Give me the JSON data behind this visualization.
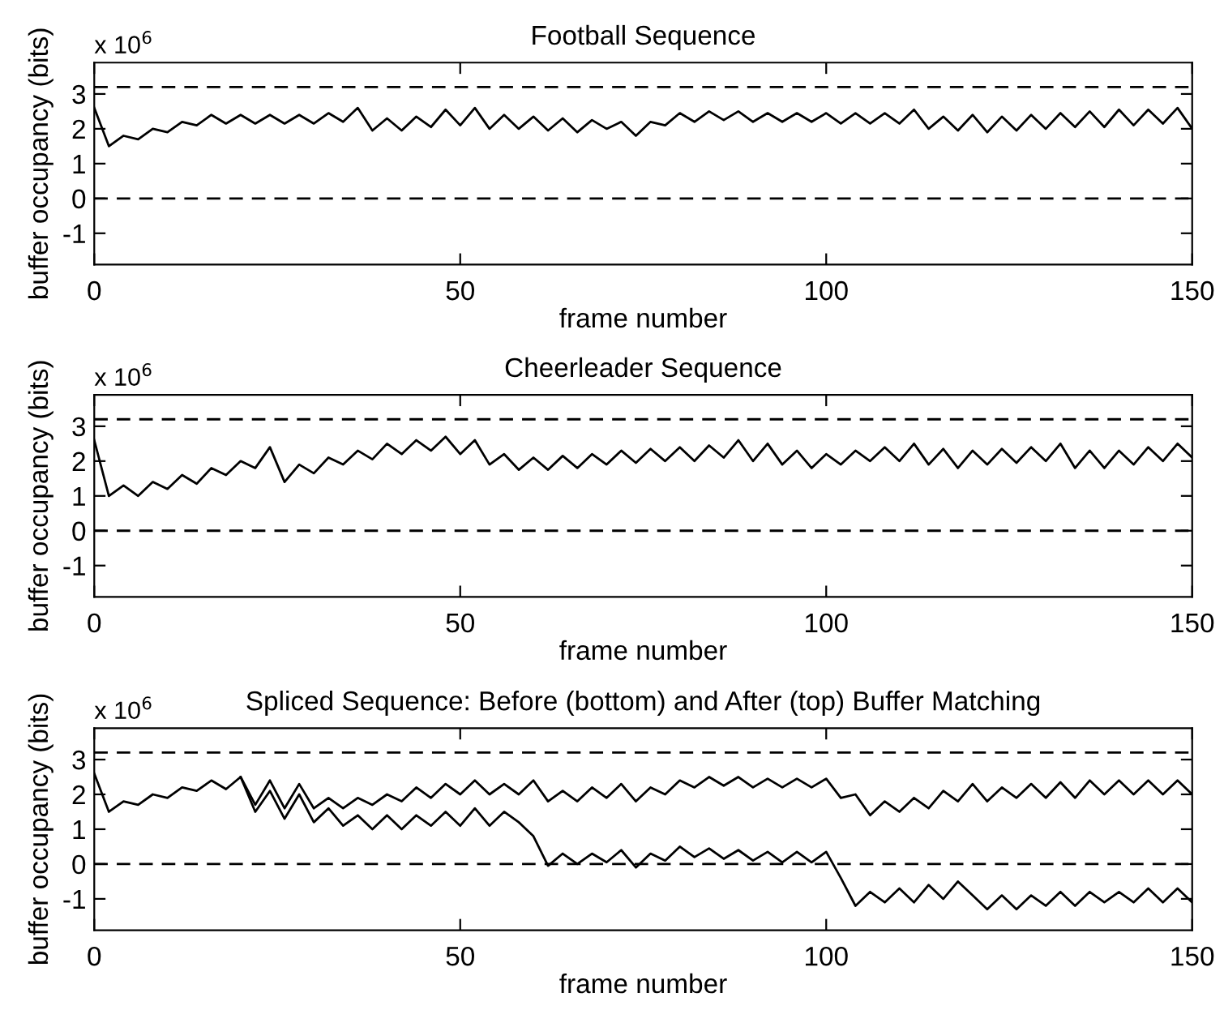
{
  "chart_data": [
    {
      "type": "line",
      "title": "Football Sequence",
      "xlabel": "frame number",
      "ylabel": "buffer occupancy (bits)",
      "annotations": [
        "x 10$^{6}$"
      ],
      "xlim": [
        0,
        150
      ],
      "xticks": [
        0,
        50,
        100,
        150
      ],
      "ylim": [
        -1.9,
        3.9
      ],
      "yticks": [
        -1,
        0,
        1,
        2,
        3
      ],
      "grid": false,
      "legend": false,
      "line_style": "solid",
      "marker": "none",
      "ref_lines": [
        {
          "axis": "y",
          "value": 3.2,
          "line_style": "dashed",
          "color": "#000000"
        },
        {
          "axis": "y",
          "value": 0,
          "line_style": "dashed",
          "color": "#000000"
        }
      ],
      "x": [
        0,
        2,
        4,
        6,
        8,
        10,
        12,
        14,
        16,
        18,
        20,
        22,
        24,
        26,
        28,
        30,
        32,
        34,
        36,
        38,
        40,
        42,
        44,
        46,
        48,
        50,
        52,
        54,
        56,
        58,
        60,
        62,
        64,
        66,
        68,
        70,
        72,
        74,
        76,
        78,
        80,
        82,
        84,
        86,
        88,
        90,
        92,
        94,
        96,
        98,
        100,
        102,
        104,
        106,
        108,
        110,
        112,
        114,
        116,
        118,
        120,
        122,
        124,
        126,
        128,
        130,
        132,
        134,
        136,
        138,
        140,
        142,
        144,
        146,
        148,
        150
      ],
      "series": [
        {
          "color": "#000000",
          "values": [
            2.6,
            1.5,
            1.8,
            1.7,
            2.0,
            1.9,
            2.2,
            2.1,
            2.4,
            2.15,
            2.4,
            2.15,
            2.4,
            2.15,
            2.4,
            2.15,
            2.45,
            2.2,
            2.6,
            1.95,
            2.3,
            1.95,
            2.35,
            2.05,
            2.55,
            2.1,
            2.6,
            2.0,
            2.4,
            2.0,
            2.35,
            1.95,
            2.3,
            1.9,
            2.25,
            2.0,
            2.2,
            1.8,
            2.2,
            2.1,
            2.45,
            2.2,
            2.5,
            2.25,
            2.5,
            2.2,
            2.45,
            2.2,
            2.45,
            2.2,
            2.45,
            2.15,
            2.45,
            2.15,
            2.45,
            2.15,
            2.55,
            2.0,
            2.35,
            1.95,
            2.4,
            1.9,
            2.35,
            1.95,
            2.4,
            2.0,
            2.45,
            2.05,
            2.5,
            2.05,
            2.55,
            2.1,
            2.55,
            2.15,
            2.6,
            2.0
          ]
        }
      ]
    },
    {
      "type": "line",
      "title": "Cheerleader Sequence",
      "xlabel": "frame number",
      "ylabel": "buffer occupancy (bits)",
      "annotations": [
        "x 10$^{6}$"
      ],
      "xlim": [
        0,
        150
      ],
      "xticks": [
        0,
        50,
        100,
        150
      ],
      "ylim": [
        -1.9,
        3.9
      ],
      "yticks": [
        -1,
        0,
        1,
        2,
        3
      ],
      "grid": false,
      "legend": false,
      "line_style": "solid",
      "marker": "none",
      "ref_lines": [
        {
          "axis": "y",
          "value": 3.2,
          "line_style": "dashed",
          "color": "#000000"
        },
        {
          "axis": "y",
          "value": 0,
          "line_style": "dashed",
          "color": "#000000"
        }
      ],
      "x": [
        0,
        2,
        4,
        6,
        8,
        10,
        12,
        14,
        16,
        18,
        20,
        22,
        24,
        26,
        28,
        30,
        32,
        34,
        36,
        38,
        40,
        42,
        44,
        46,
        48,
        50,
        52,
        54,
        56,
        58,
        60,
        62,
        64,
        66,
        68,
        70,
        72,
        74,
        76,
        78,
        80,
        82,
        84,
        86,
        88,
        90,
        92,
        94,
        96,
        98,
        100,
        102,
        104,
        106,
        108,
        110,
        112,
        114,
        116,
        118,
        120,
        122,
        124,
        126,
        128,
        130,
        132,
        134,
        136,
        138,
        140,
        142,
        144,
        146,
        148,
        150
      ],
      "series": [
        {
          "color": "#000000",
          "values": [
            2.6,
            1.0,
            1.3,
            1.0,
            1.4,
            1.2,
            1.6,
            1.35,
            1.8,
            1.6,
            2.0,
            1.8,
            2.4,
            1.4,
            1.9,
            1.65,
            2.1,
            1.9,
            2.3,
            2.05,
            2.5,
            2.2,
            2.6,
            2.3,
            2.7,
            2.2,
            2.6,
            1.9,
            2.2,
            1.75,
            2.1,
            1.75,
            2.15,
            1.8,
            2.2,
            1.9,
            2.3,
            1.95,
            2.35,
            2.0,
            2.4,
            2.0,
            2.45,
            2.1,
            2.6,
            2.0,
            2.5,
            1.9,
            2.3,
            1.8,
            2.2,
            1.9,
            2.3,
            2.0,
            2.4,
            2.0,
            2.5,
            1.9,
            2.35,
            1.8,
            2.3,
            1.9,
            2.35,
            1.95,
            2.4,
            2.0,
            2.5,
            1.8,
            2.3,
            1.8,
            2.3,
            1.9,
            2.4,
            2.0,
            2.5,
            2.1
          ]
        }
      ]
    },
    {
      "type": "line",
      "title": "Spliced Sequence: Before (bottom) and After (top) Buffer Matching",
      "xlabel": "frame number",
      "ylabel": "buffer occupancy (bits)",
      "annotations": [
        "x 10$^{6}$"
      ],
      "xlim": [
        0,
        150
      ],
      "xticks": [
        0,
        50,
        100,
        150
      ],
      "ylim": [
        -1.9,
        3.9
      ],
      "yticks": [
        -1,
        0,
        1,
        2,
        3
      ],
      "grid": false,
      "legend": false,
      "line_style": "solid",
      "marker": "none",
      "ref_lines": [
        {
          "axis": "y",
          "value": 3.2,
          "line_style": "dashed",
          "color": "#000000"
        },
        {
          "axis": "y",
          "value": 0,
          "line_style": "dashed",
          "color": "#000000"
        }
      ],
      "x": [
        0,
        2,
        4,
        6,
        8,
        10,
        12,
        14,
        16,
        18,
        20,
        22,
        24,
        26,
        28,
        30,
        32,
        34,
        36,
        38,
        40,
        42,
        44,
        46,
        48,
        50,
        52,
        54,
        56,
        58,
        60,
        62,
        64,
        66,
        68,
        70,
        72,
        74,
        76,
        78,
        80,
        82,
        84,
        86,
        88,
        90,
        92,
        94,
        96,
        98,
        100,
        102,
        104,
        106,
        108,
        110,
        112,
        114,
        116,
        118,
        120,
        122,
        124,
        126,
        128,
        130,
        132,
        134,
        136,
        138,
        140,
        142,
        144,
        146,
        148,
        150
      ],
      "series": [
        {
          "color": "#000000",
          "values": [
            2.6,
            1.5,
            1.8,
            1.7,
            2.0,
            1.9,
            2.2,
            2.1,
            2.4,
            2.15,
            2.5,
            1.7,
            2.4,
            1.6,
            2.3,
            1.6,
            1.9,
            1.6,
            1.9,
            1.7,
            2.0,
            1.8,
            2.2,
            1.9,
            2.3,
            2.0,
            2.4,
            2.0,
            2.3,
            2.0,
            2.4,
            1.8,
            2.1,
            1.8,
            2.2,
            1.9,
            2.3,
            1.8,
            2.2,
            2.0,
            2.4,
            2.2,
            2.5,
            2.25,
            2.5,
            2.2,
            2.45,
            2.2,
            2.45,
            2.2,
            2.45,
            1.9,
            2.0,
            1.4,
            1.8,
            1.5,
            1.9,
            1.6,
            2.1,
            1.8,
            2.3,
            1.8,
            2.2,
            1.9,
            2.3,
            1.9,
            2.35,
            1.9,
            2.4,
            2.0,
            2.4,
            2.0,
            2.4,
            2.0,
            2.4,
            2.0
          ]
        },
        {
          "color": "#000000",
          "x": [
            20,
            22,
            24,
            26,
            28,
            30,
            32,
            34,
            36,
            38,
            40,
            42,
            44,
            46,
            48,
            50,
            52,
            54,
            56,
            58,
            60,
            62,
            64,
            66,
            68,
            70,
            72,
            74,
            76,
            78,
            80,
            82,
            84,
            86,
            88,
            90,
            92,
            94,
            96,
            98,
            100,
            102,
            104,
            106,
            108,
            110,
            112,
            114,
            116,
            118,
            120,
            122,
            124,
            126,
            128,
            130,
            132,
            134,
            136,
            138,
            140,
            142,
            144,
            146,
            148,
            150
          ],
          "values": [
            2.5,
            1.5,
            2.1,
            1.3,
            2.0,
            1.2,
            1.6,
            1.1,
            1.4,
            1.0,
            1.4,
            1.0,
            1.4,
            1.1,
            1.5,
            1.1,
            1.6,
            1.1,
            1.5,
            1.2,
            0.8,
            -0.05,
            0.3,
            0.0,
            0.3,
            0.05,
            0.4,
            -0.1,
            0.3,
            0.1,
            0.5,
            0.2,
            0.45,
            0.15,
            0.4,
            0.1,
            0.35,
            0.05,
            0.35,
            0.05,
            0.35,
            -0.4,
            -1.2,
            -0.8,
            -1.1,
            -0.7,
            -1.1,
            -0.6,
            -1.0,
            -0.5,
            -0.9,
            -1.3,
            -0.9,
            -1.3,
            -0.9,
            -1.2,
            -0.8,
            -1.2,
            -0.8,
            -1.1,
            -0.8,
            -1.1,
            -0.7,
            -1.1,
            -0.7,
            -1.1
          ]
        }
      ]
    }
  ]
}
